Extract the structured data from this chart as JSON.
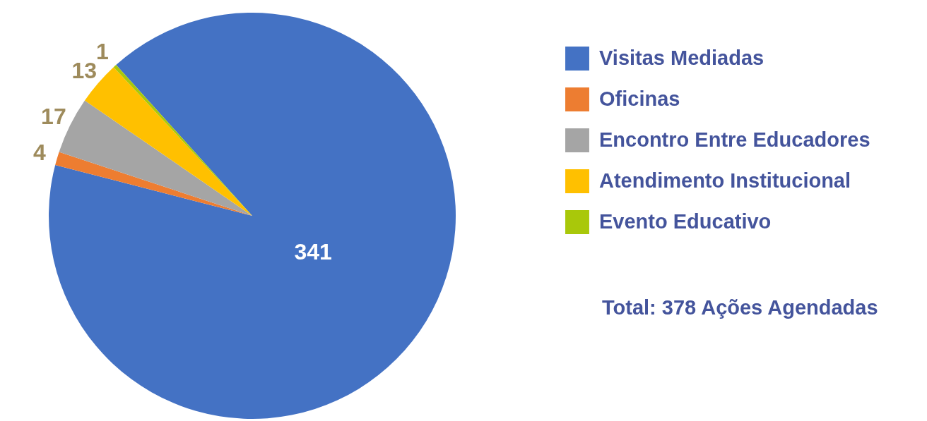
{
  "chart_data": {
    "type": "pie",
    "categories": [
      "Visitas Mediadas",
      "Oficinas",
      "Encontro Entre Educadores",
      "Atendimento Institucional",
      "Evento Educativo"
    ],
    "values": [
      341,
      4,
      17,
      13,
      1
    ],
    "colors": [
      "#4472c4",
      "#ed7d31",
      "#a5a5a5",
      "#ffc000",
      "#a9c80a"
    ],
    "data_labels": true,
    "legend": "right",
    "annotations": [
      "Total: 378 Ações Agendadas"
    ]
  }
}
